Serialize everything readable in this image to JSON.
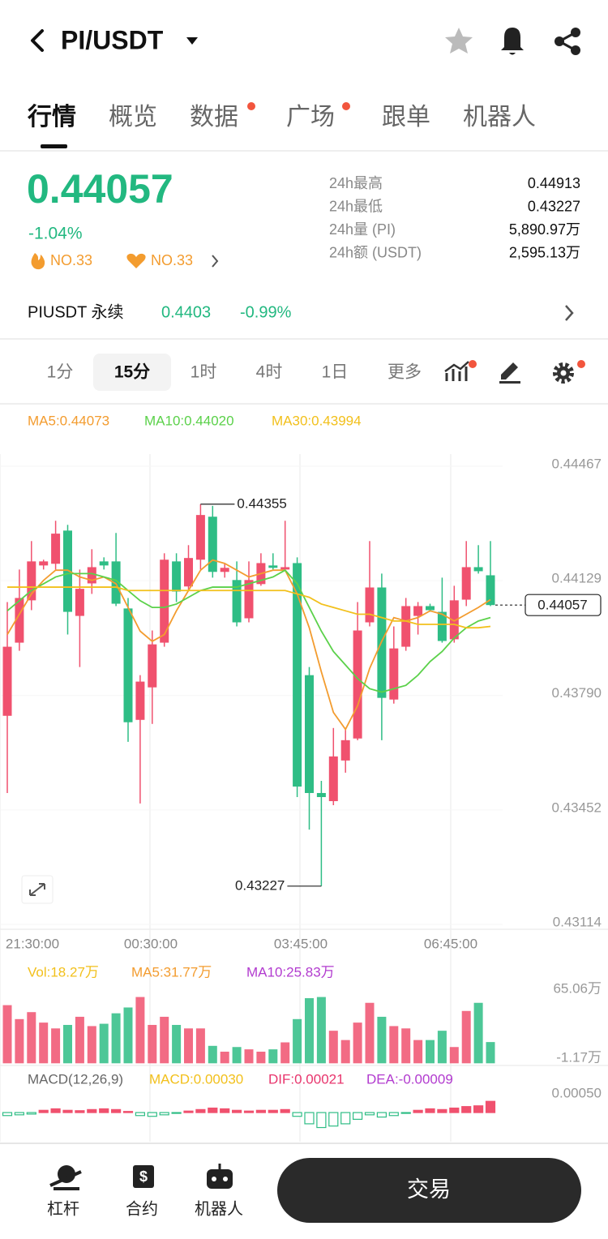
{
  "header": {
    "title": "PI/USDT"
  },
  "tabs": [
    "行情",
    "概览",
    "数据",
    "广场",
    "跟单",
    "机器人"
  ],
  "ticker": {
    "price": "0.44057",
    "change": "-1.04%",
    "rank_hot": "NO.33",
    "rank_fav": "NO.33",
    "stats": [
      {
        "label": "24h最高",
        "value": "0.44913"
      },
      {
        "label": "24h最低",
        "value": "0.43227"
      },
      {
        "label": "24h量 (PI)",
        "value": "5,890.97万"
      },
      {
        "label": "24h额 (USDT)",
        "value": "2,595.13万"
      }
    ]
  },
  "perp": {
    "name": "PIUSDT 永续",
    "price": "0.4403",
    "change": "-0.99%"
  },
  "intervals": [
    "1分",
    "15分",
    "1时",
    "4时",
    "1日",
    "更多"
  ],
  "chart_data": {
    "type": "candlestick",
    "up_color": "#f0516e",
    "down_color": "#2ebd85",
    "ylim": [
      0.43114,
      0.44467
    ],
    "yticks": [
      0.44467,
      0.44129,
      {
        "value": 0.4379,
        "label": "0.43790"
      },
      0.43452,
      0.43114
    ],
    "xtick_labels": [
      "21:30:00",
      "00:30:00",
      "03:45:00",
      "06:45:00"
    ],
    "grid": true,
    "open": [
      0.4373,
      0.43946,
      0.44071,
      0.44174,
      0.44179,
      0.44277,
      0.44025,
      0.44121,
      0.44186,
      0.44186,
      0.44047,
      0.43718,
      0.43814,
      0.43946,
      0.44186,
      0.44112,
      0.44191,
      0.44318,
      0.44155,
      0.44131,
      0.44018,
      0.44119,
      0.44174,
      0.44162,
      0.44181,
      0.4385,
      0.43502,
      0.43478,
      0.43598,
      0.43663,
      0.44006,
      0.44109,
      0.43778,
      0.43934,
      0.44025,
      0.44054,
      0.44037,
      0.43956,
      0.44073,
      0.44169,
      0.44145
    ],
    "high": [
      0.44066,
      0.44162,
      0.44246,
      0.44191,
      0.44306,
      0.44294,
      0.44162,
      0.44222,
      0.44198,
      0.4427,
      0.44078,
      0.4385,
      0.43982,
      0.4421,
      0.4421,
      0.44234,
      0.44355,
      0.4435,
      0.44181,
      0.44186,
      0.44186,
      0.4421,
      0.4421,
      0.44306,
      0.44198,
      0.43874,
      0.43538,
      0.43694,
      0.43694,
      0.44066,
      0.44246,
      0.4415,
      0.43994,
      0.44078,
      0.44066,
      0.44061,
      0.44138,
      0.44114,
      0.44246,
      0.44234,
      0.44246
    ],
    "low": [
      0.43502,
      0.43922,
      0.44042,
      0.44162,
      0.44162,
      0.4397,
      0.43874,
      0.4409,
      0.44162,
      0.44054,
      0.43653,
      0.43471,
      0.43706,
      0.43934,
      0.44066,
      0.44102,
      0.44162,
      0.44138,
      0.44138,
      0.43994,
      0.44006,
      0.44114,
      0.44162,
      0.44162,
      0.4349,
      0.43394,
      0.43227,
      0.43466,
      0.43562,
      0.43658,
      0.43994,
      0.43658,
      0.43766,
      0.43922,
      0.4397,
      0.44037,
      0.43946,
      0.43946,
      0.44054,
      0.4415,
      0.44054
    ],
    "close": [
      0.43934,
      0.44078,
      0.44186,
      0.44186,
      0.44268,
      0.44037,
      0.44105,
      0.44169,
      0.44174,
      0.44061,
      0.43711,
      0.43831,
      0.43941,
      0.44191,
      0.44097,
      0.44196,
      0.44323,
      0.44155,
      0.44167,
      0.44006,
      0.44131,
      0.44181,
      0.44167,
      0.44169,
      0.43521,
      0.43502,
      0.4349,
      0.4361,
      0.43658,
      0.43982,
      0.44109,
      0.43783,
      0.43929,
      0.44054,
      0.44054,
      0.44042,
      0.43951,
      0.44071,
      0.44169,
      0.44157,
      0.44057
    ],
    "ma": [
      {
        "label": "MA5:0.44073",
        "color": "#f39c2f",
        "values": [
          0.4397,
          0.4403,
          0.4409,
          0.4413,
          0.4416,
          0.4416,
          0.4414,
          0.4413,
          0.4414,
          0.4412,
          0.4405,
          0.4398,
          0.4395,
          0.4397,
          0.4404,
          0.441,
          0.4416,
          0.4419,
          0.4418,
          0.4416,
          0.4414,
          0.4415,
          0.4416,
          0.4416,
          0.4409,
          0.4399,
          0.4386,
          0.4374,
          0.4369,
          0.4376,
          0.4387,
          0.4395,
          0.4402,
          0.4401,
          0.4402,
          0.4404,
          0.4403,
          0.4401,
          0.4403,
          0.4405,
          0.44073
        ]
      },
      {
        "label": "MA10:0.44020",
        "color": "#5bd14a",
        "values": [
          0.4404,
          0.4407,
          0.441,
          0.4412,
          0.4414,
          0.4415,
          0.4415,
          0.4415,
          0.4414,
          0.4413,
          0.441,
          0.4407,
          0.4405,
          0.4405,
          0.4406,
          0.4408,
          0.441,
          0.4411,
          0.4411,
          0.4411,
          0.4412,
          0.4413,
          0.4414,
          0.4416,
          0.4412,
          0.4405,
          0.4398,
          0.4392,
          0.4388,
          0.4384,
          0.4381,
          0.438,
          0.4381,
          0.4382,
          0.4385,
          0.4389,
          0.4392,
          0.4396,
          0.4399,
          0.4401,
          0.4402
        ]
      },
      {
        "label": "MA30:0.43994",
        "color": "#f2c01c",
        "values": [
          0.4411,
          0.4411,
          0.4411,
          0.4411,
          0.4411,
          0.4411,
          0.4411,
          0.4411,
          0.4411,
          0.4411,
          0.441,
          0.441,
          0.441,
          0.441,
          0.441,
          0.441,
          0.441,
          0.441,
          0.441,
          0.441,
          0.441,
          0.441,
          0.441,
          0.441,
          0.4409,
          0.4408,
          0.4406,
          0.4405,
          0.4404,
          0.4403,
          0.4403,
          0.4402,
          0.4401,
          0.4401,
          0.44,
          0.44,
          0.44,
          0.44,
          0.4399,
          0.4399,
          0.43994
        ]
      }
    ],
    "high_label": 0.44355,
    "low_label": 0.43227,
    "last_price": 0.44057,
    "volume": {
      "legend": [
        {
          "text": "Vol:18.27万",
          "color": "#f2c01c"
        },
        {
          "text": "MA5:31.77万",
          "color": "#f39c2f"
        },
        {
          "text": "MA10:25.83万",
          "color": "#b23bcf"
        }
      ],
      "ylim": [
        -1.17,
        65.06
      ],
      "yticks": [
        {
          "value": 65.06,
          "label": "65.06万"
        },
        {
          "value": -1.17,
          "label": "-1.17万"
        }
      ],
      "values": [
        50,
        38,
        44,
        35,
        30,
        33,
        40,
        32,
        34,
        43,
        48,
        57,
        33,
        40,
        33,
        30,
        30,
        15,
        10,
        14,
        12,
        10,
        12,
        18,
        38,
        56,
        57,
        28,
        20,
        35,
        52,
        40,
        32,
        30,
        20,
        20,
        28,
        14,
        45,
        52,
        18.27
      ]
    },
    "macd": {
      "legend": [
        {
          "text": "MACD(12,26,9)",
          "color": "#666666"
        },
        {
          "text": "MACD:0.00030",
          "color": "#f2c01c"
        },
        {
          "text": "DIF:0.00021",
          "color": "#e8356d"
        },
        {
          "text": "DEA:-0.00009",
          "color": "#b23bcf"
        }
      ],
      "ylim": [
        -0.0008,
        0.0005
      ],
      "yticks": [
        {
          "value": 0.0005,
          "label": "0.00050"
        }
      ],
      "values": [
        -8e-05,
        -6e-05,
        -4e-05,
        6e-05,
        0.0001,
        6e-05,
        5e-05,
        8e-05,
        0.0001,
        8e-05,
        3e-05,
        -8e-05,
        -0.0001,
        -6e-05,
        -2e-05,
        4e-05,
        8e-05,
        0.00012,
        0.0001,
        6e-05,
        4e-05,
        6e-05,
        6e-05,
        8e-05,
        -0.0001,
        -0.0003,
        -0.0004,
        -0.00036,
        -0.0003,
        -0.00018,
        -6e-05,
        -0.00012,
        -8e-05,
        -2e-05,
        6e-05,
        0.0001,
        8e-05,
        0.00012,
        0.00016,
        0.00018,
        0.0003
      ]
    }
  },
  "bottom_nav": {
    "items": [
      "杠杆",
      "合约",
      "机器人"
    ],
    "trade": "交易"
  }
}
